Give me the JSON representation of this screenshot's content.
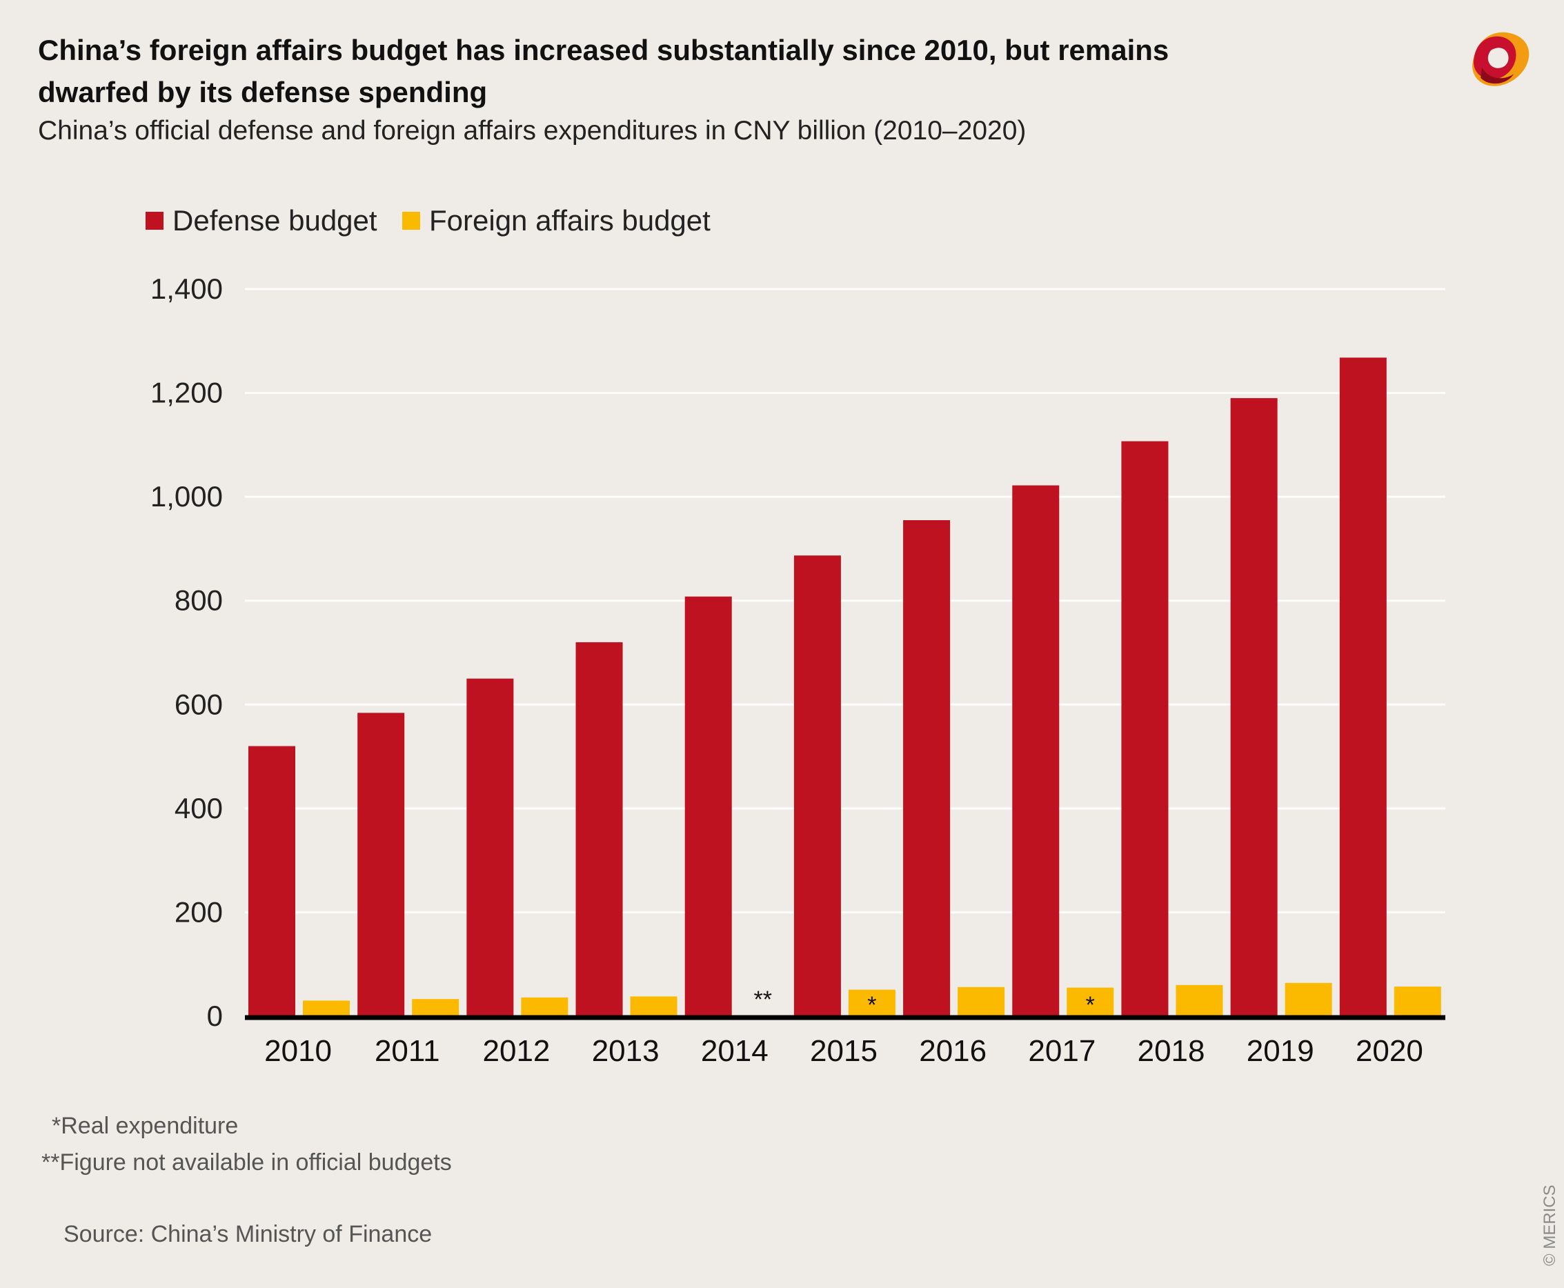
{
  "title": "China’s foreign affairs budget has increased substantially since 2010, but remains dwarfed by its defense spending",
  "subtitle": "China’s official defense and foreign affairs expenditures in CNY billion (2010–2020)",
  "footnotes": {
    "real": "*Real expenditure",
    "not_available": "**Figure not available in official budgets"
  },
  "source": "Source: China’s Ministry of Finance",
  "copyright": "© MERICS",
  "logo": {
    "icon": "merics-logo-icon",
    "colors": [
      "#c8102e",
      "#f39c12",
      "#ffffff"
    ]
  },
  "colors": {
    "defense": "#be1220",
    "foreign_affairs": "#fbb900",
    "gridline": "#ffffff",
    "baseline": "#000000",
    "background": "#efebe6"
  },
  "chart_data": {
    "type": "bar",
    "categories": [
      "2010",
      "2011",
      "2012",
      "2013",
      "2014",
      "2015",
      "2016",
      "2017",
      "2018",
      "2019",
      "2020"
    ],
    "series": [
      {
        "name": "Defense budget",
        "values": [
          520,
          584,
          650,
          720,
          808,
          887,
          955,
          1022,
          1107,
          1190,
          1268
        ]
      },
      {
        "name": "Foreign affairs budget",
        "values": [
          30,
          33,
          36,
          38,
          null,
          51,
          56,
          55,
          60,
          64,
          57
        ]
      }
    ],
    "annotations": [
      {
        "category": "2014",
        "series": "Foreign affairs budget",
        "text": "**"
      },
      {
        "category": "2015",
        "series": "Foreign affairs budget",
        "text": "*"
      },
      {
        "category": "2017",
        "series": "Foreign affairs budget",
        "text": "*"
      }
    ],
    "yticks": [
      0,
      200,
      400,
      600,
      800,
      1000,
      1200,
      1400
    ],
    "ytick_labels": [
      "0",
      "200",
      "400",
      "600",
      "800",
      "1,000",
      "1,200",
      "1,400"
    ],
    "ylim": [
      0,
      1400
    ],
    "xlabel": "",
    "ylabel": "",
    "grid": true,
    "legend": "top-left"
  }
}
